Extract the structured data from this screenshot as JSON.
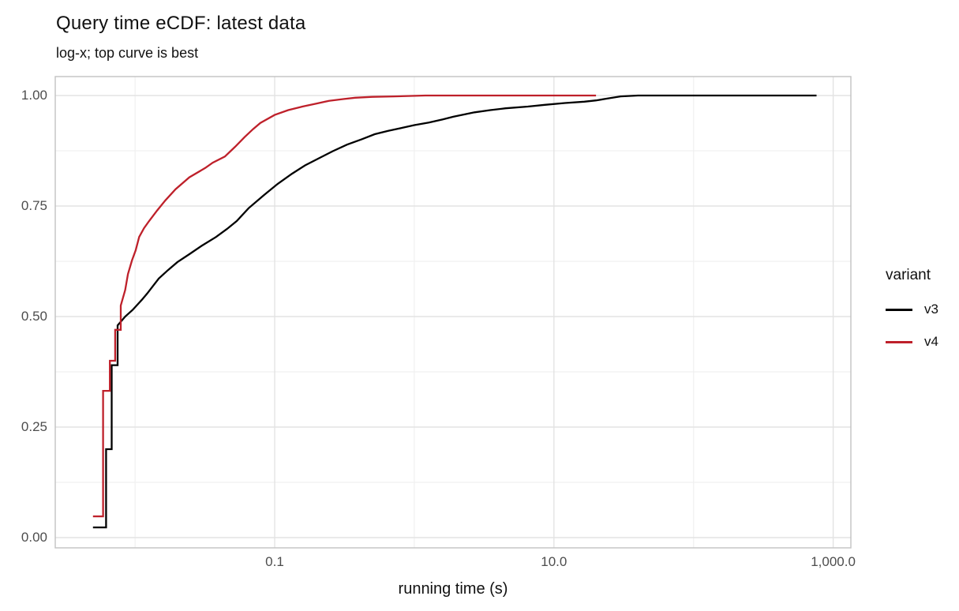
{
  "title": "Query time eCDF: latest data",
  "subtitle": "log-x; top curve is best",
  "chart_data": {
    "type": "line",
    "subtype": "ecdf_step",
    "title": "Query time eCDF: latest data",
    "subtitle": "log-x; top curve is best",
    "xlabel": "running time (s)",
    "ylabel": "",
    "x_scale": "log10",
    "grid": true,
    "x_ticks": [
      {
        "value": 0.1,
        "label": "0.1"
      },
      {
        "value": 10,
        "label": "10.0"
      },
      {
        "value": 1000,
        "label": "1,000.0"
      }
    ],
    "x_minor_breaks": [
      0.01,
      1,
      100
    ],
    "y_ticks": [
      {
        "value": 0.0,
        "label": "0.00"
      },
      {
        "value": 0.25,
        "label": "0.25"
      },
      {
        "value": 0.5,
        "label": "0.50"
      },
      {
        "value": 0.75,
        "label": "0.75"
      },
      {
        "value": 1.0,
        "label": "1.00"
      }
    ],
    "y_minor_breaks": [
      0.125,
      0.375,
      0.625,
      0.875
    ],
    "x_range_shown": [
      0.0027,
      1330
    ],
    "ylim": [
      0,
      1
    ],
    "legend": {
      "title": "variant",
      "position": "right",
      "entries": [
        {
          "label": "v3",
          "color": "#000000"
        },
        {
          "label": "v4",
          "color": "#BE202A"
        }
      ]
    },
    "series": [
      {
        "name": "v3",
        "color": "#000000",
        "points": [
          [
            0.005,
            0.023
          ],
          [
            0.0062,
            0.2
          ],
          [
            0.0068,
            0.39
          ],
          [
            0.0075,
            0.48
          ],
          [
            0.0085,
            0.5
          ],
          [
            0.0096,
            0.515
          ],
          [
            0.0112,
            0.538
          ],
          [
            0.0122,
            0.552
          ],
          [
            0.0135,
            0.57
          ],
          [
            0.0148,
            0.586
          ],
          [
            0.0172,
            0.605
          ],
          [
            0.0201,
            0.623
          ],
          [
            0.0245,
            0.641
          ],
          [
            0.03,
            0.66
          ],
          [
            0.038,
            0.68
          ],
          [
            0.0455,
            0.698
          ],
          [
            0.0535,
            0.716
          ],
          [
            0.065,
            0.745
          ],
          [
            0.084,
            0.775
          ],
          [
            0.105,
            0.8
          ],
          [
            0.133,
            0.823
          ],
          [
            0.165,
            0.842
          ],
          [
            0.21,
            0.859
          ],
          [
            0.26,
            0.874
          ],
          [
            0.33,
            0.889
          ],
          [
            0.42,
            0.901
          ],
          [
            0.52,
            0.9125
          ],
          [
            0.65,
            0.92
          ],
          [
            0.82,
            0.927
          ],
          [
            1.0,
            0.933
          ],
          [
            1.27,
            0.939
          ],
          [
            1.6,
            0.946
          ],
          [
            1.9,
            0.952
          ],
          [
            2.7,
            0.962
          ],
          [
            3.5,
            0.967
          ],
          [
            4.5,
            0.971
          ],
          [
            6.5,
            0.975
          ],
          [
            8.6,
            0.979
          ],
          [
            12,
            0.983
          ],
          [
            16.5,
            0.986
          ],
          [
            20,
            0.989
          ],
          [
            24,
            0.993
          ],
          [
            30,
            0.998
          ],
          [
            40,
            1.0
          ],
          [
            760,
            1.0
          ]
        ]
      },
      {
        "name": "v4",
        "color": "#BE202A",
        "points": [
          [
            0.005,
            0.048
          ],
          [
            0.0059,
            0.332
          ],
          [
            0.0066,
            0.4
          ],
          [
            0.0072,
            0.47
          ],
          [
            0.0079,
            0.525
          ],
          [
            0.0085,
            0.56
          ],
          [
            0.0089,
            0.596
          ],
          [
            0.0095,
            0.627
          ],
          [
            0.0101,
            0.65
          ],
          [
            0.0107,
            0.68
          ],
          [
            0.0116,
            0.7
          ],
          [
            0.0126,
            0.716
          ],
          [
            0.0144,
            0.74
          ],
          [
            0.0164,
            0.762
          ],
          [
            0.0195,
            0.788
          ],
          [
            0.0245,
            0.815
          ],
          [
            0.0318,
            0.836
          ],
          [
            0.036,
            0.848
          ],
          [
            0.044,
            0.862
          ],
          [
            0.052,
            0.884
          ],
          [
            0.061,
            0.906
          ],
          [
            0.07,
            0.924
          ],
          [
            0.079,
            0.938
          ],
          [
            0.1,
            0.956
          ],
          [
            0.125,
            0.967
          ],
          [
            0.158,
            0.975
          ],
          [
            0.2,
            0.982
          ],
          [
            0.245,
            0.988
          ],
          [
            0.31,
            0.992
          ],
          [
            0.377,
            0.995
          ],
          [
            0.5,
            0.997
          ],
          [
            0.72,
            0.998
          ],
          [
            1.2,
            1.0
          ],
          [
            20,
            1.0
          ]
        ]
      }
    ]
  },
  "colors": {
    "background": "#ffffff",
    "panel_background": "#ffffff",
    "grid_major": "#e3e3e3",
    "grid_minor": "#f0f0f0",
    "panel_border": "#c2c2c2",
    "axis_text": "#4d4d4d",
    "text": "#111111",
    "series_v3": "#000000",
    "series_v4": "#BE202A"
  }
}
